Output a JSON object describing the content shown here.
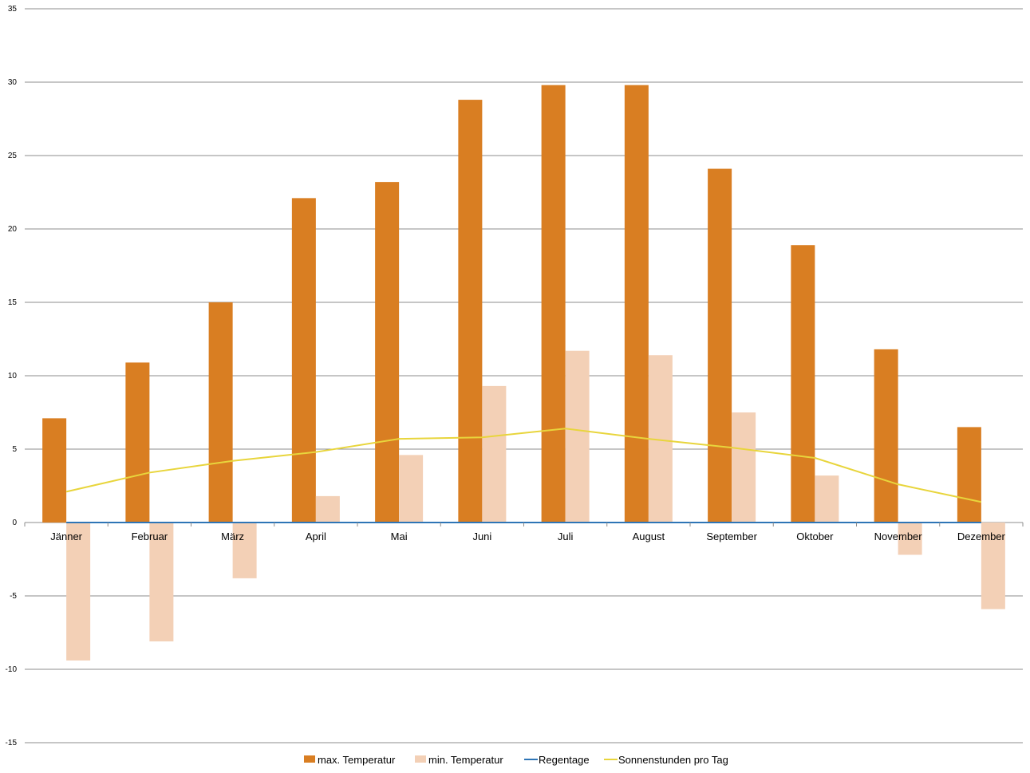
{
  "chart_data": {
    "type": "bar",
    "categories": [
      "Jänner",
      "Februar",
      "März",
      "April",
      "Mai",
      "Juni",
      "Juli",
      "August",
      "September",
      "Oktober",
      "November",
      "Dezember"
    ],
    "ylim": [
      -15,
      35
    ],
    "yticks": [
      35,
      30,
      25,
      20,
      15,
      10,
      5,
      0,
      -5,
      -10,
      -15
    ],
    "grid": true,
    "legend_position": "bottom",
    "series": [
      {
        "name": "max. Temperatur",
        "kind": "bar",
        "color": "#D97E22",
        "values": [
          7.1,
          10.9,
          15.0,
          22.1,
          23.2,
          28.8,
          29.8,
          29.8,
          24.1,
          18.9,
          11.8,
          6.5
        ]
      },
      {
        "name": "min. Temperatur",
        "kind": "bar",
        "color": "#F3D0B6",
        "values": [
          -9.4,
          -8.1,
          -3.8,
          1.8,
          4.6,
          9.3,
          11.7,
          11.4,
          7.5,
          3.2,
          -2.2,
          -5.9
        ]
      },
      {
        "name": "Regentage",
        "kind": "line",
        "color": "#2E75B6",
        "values": [
          0,
          0,
          0,
          0,
          0,
          0,
          0,
          0,
          0,
          0,
          0,
          0
        ]
      },
      {
        "name": "Sonnenstunden pro Tag",
        "kind": "line",
        "color": "#E8D53C",
        "values": [
          2.1,
          3.4,
          4.2,
          4.8,
          5.7,
          5.8,
          6.4,
          5.7,
          5.1,
          4.4,
          2.6,
          1.4
        ]
      }
    ]
  }
}
